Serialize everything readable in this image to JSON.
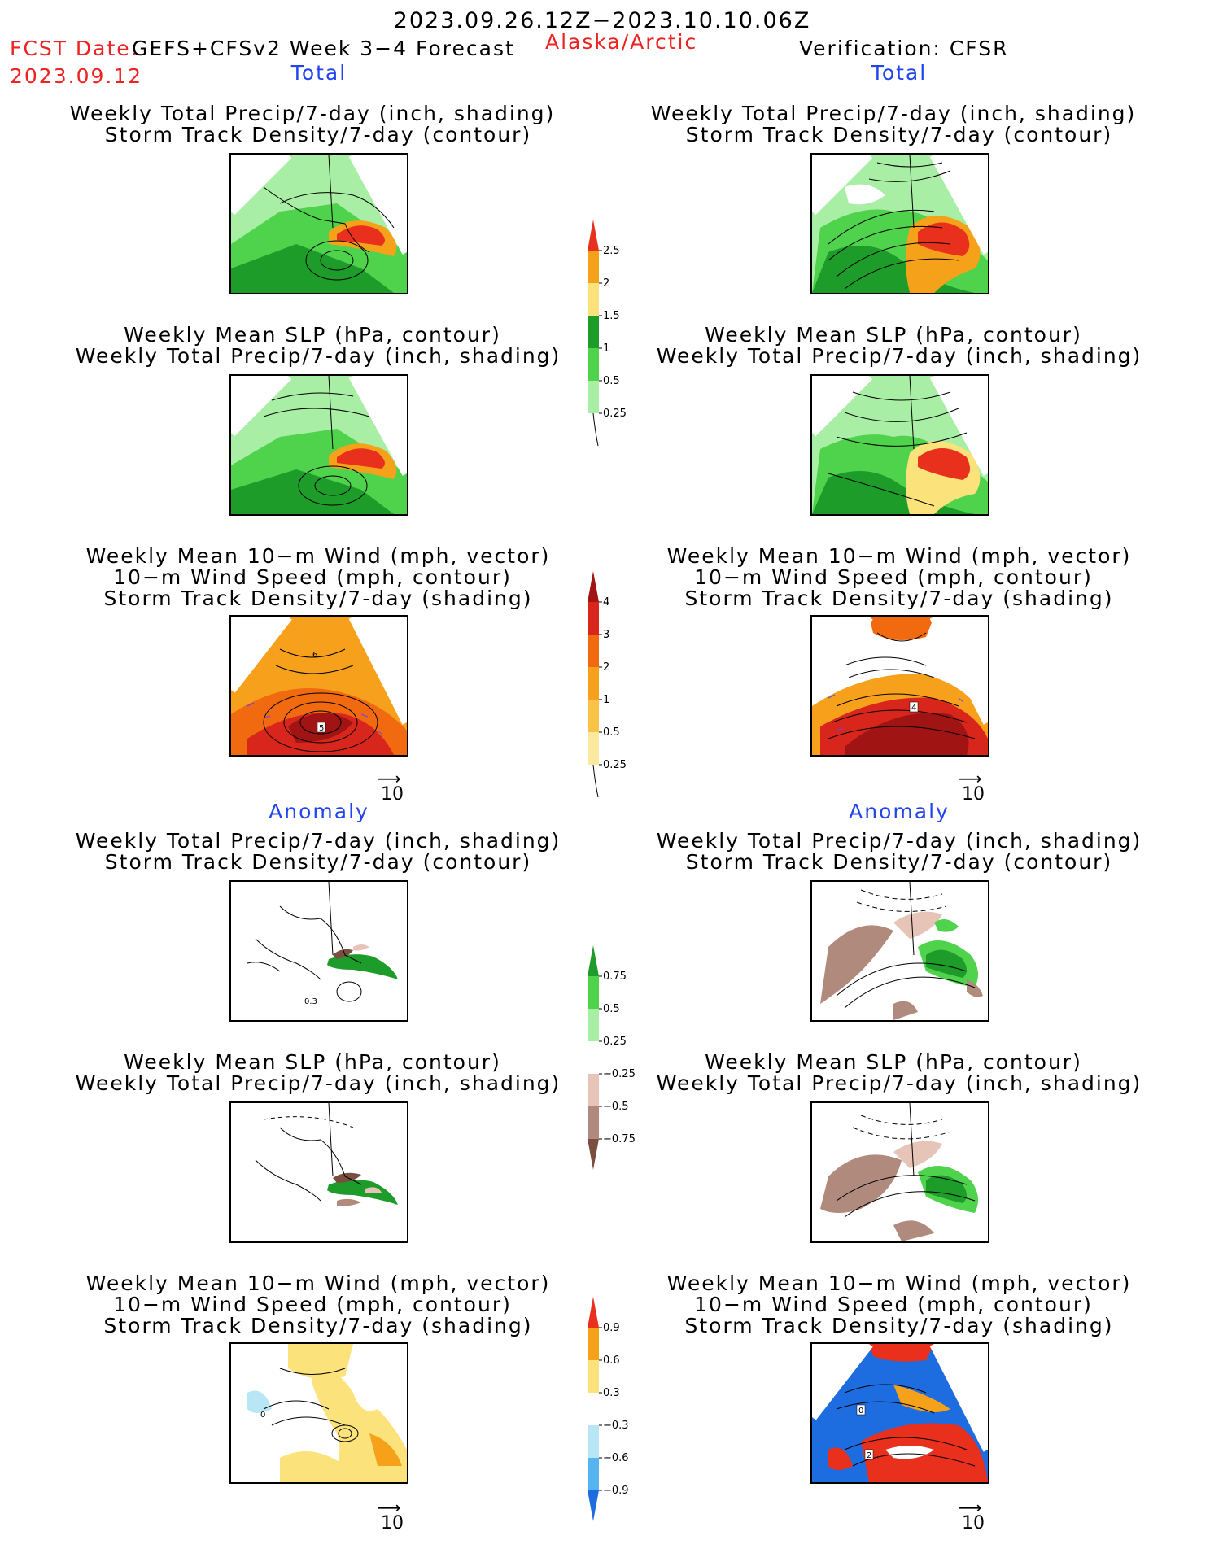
{
  "header": {
    "date_range": "2023.09.26.12Z−2023.10.10.06Z",
    "fcst_label": "FCST Date:",
    "model": "GEFS+CFSv2 Week 3−4 Forecast",
    "region": "Alaska/Arctic",
    "verification": "Verification: CFSR",
    "fcst_date": "2023.09.12"
  },
  "sections": {
    "total": "Total",
    "anomaly": "Anomaly"
  },
  "titles": {
    "precip_storm": [
      "Weekly Total Precip/7-day (inch, shading)",
      "Storm Track Density/7-day (contour)"
    ],
    "slp_precip": [
      "Weekly Mean SLP (hPa, contour)",
      "Weekly Total Precip/7-day (inch, shading)"
    ],
    "wind_storm": [
      "Weekly Mean 10−m Wind (mph, vector)",
      "10−m Wind Speed (mph, contour)",
      "Storm Track Density/7-day (shading)"
    ]
  },
  "panel_labels": {
    "wind_total_left": "5",
    "wind_total_left_top": "6",
    "wind_total_right": "4",
    "anom_precip_left": "0.3",
    "wind_anom_left": "0",
    "wind_anom_right_a": "0",
    "wind_anom_right_b": "2"
  },
  "vector_ref": "10",
  "colorbars": {
    "precip_total": {
      "labels": [
        "2.5",
        "2",
        "1.5",
        "1",
        "0.5",
        "0.25"
      ],
      "colors": [
        "#e8301c",
        "#f5a21a",
        "#fbe27a",
        "#1e9c2a",
        "#4fd24c",
        "#a9eea5"
      ]
    },
    "storm_total": {
      "labels": [
        "4",
        "3",
        "2",
        "1",
        "0.5",
        "0.25"
      ],
      "colors": [
        "#a11414",
        "#d9261c",
        "#f26a10",
        "#f7a01c",
        "#f8c347",
        "#fbe9a0"
      ]
    },
    "precip_anom": {
      "labels": [
        "0.75",
        "0.5",
        "0.25",
        "−0.25",
        "−0.5",
        "−0.75"
      ],
      "colors": [
        "#1e9c2a",
        "#4fd24c",
        "#a9eea5",
        "#ffffff",
        "#e6c4b8",
        "#b08a7c",
        "#7a4e40"
      ]
    },
    "storm_anom": {
      "labels": [
        "0.9",
        "0.6",
        "0.3",
        "−0.3",
        "−0.6",
        "−0.9"
      ],
      "colors": [
        "#e8301c",
        "#f5a21a",
        "#fbe27a",
        "#ffffff",
        "#b9e6f5",
        "#56b4f0",
        "#1e6de0"
      ]
    }
  }
}
